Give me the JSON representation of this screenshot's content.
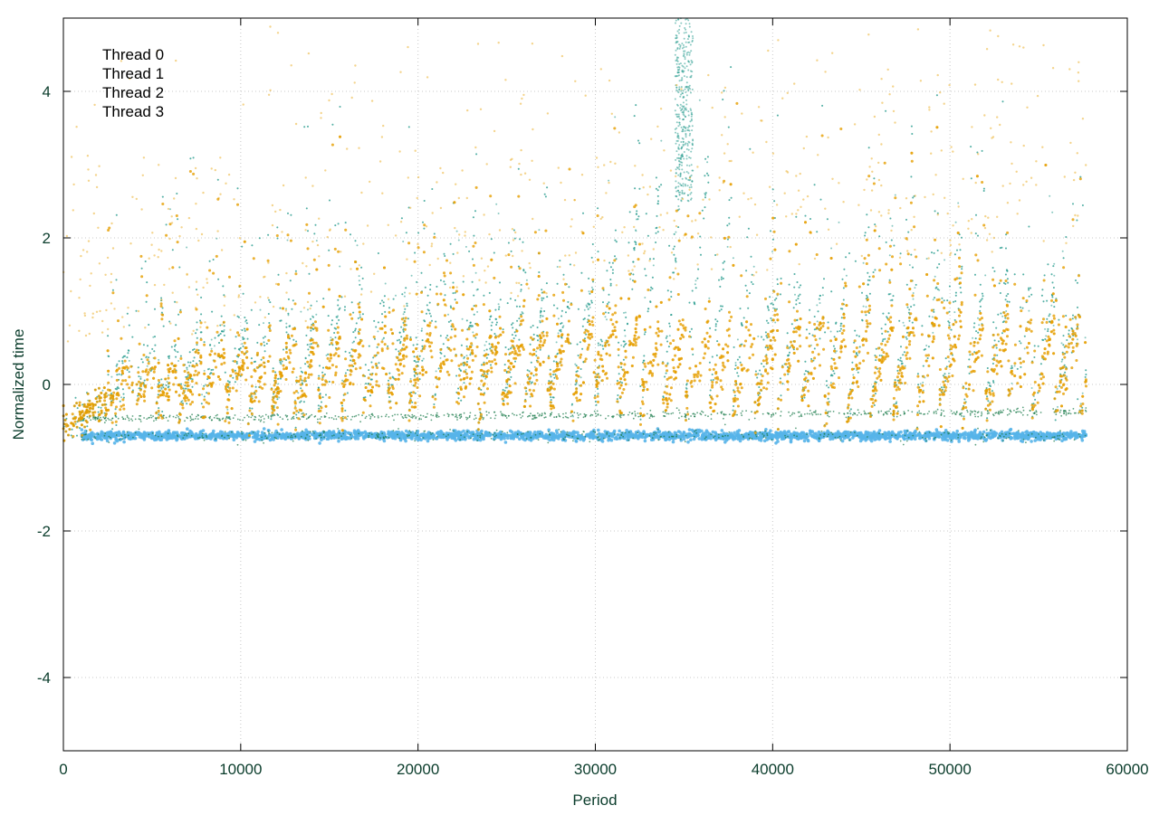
{
  "chart_data": {
    "type": "scatter",
    "title": "",
    "xlabel": "Period",
    "ylabel": "Normalized time",
    "xlim": [
      0,
      60000
    ],
    "ylim": [
      -5,
      5
    ],
    "xticks": [
      0,
      10000,
      20000,
      30000,
      40000,
      50000,
      60000
    ],
    "yticks": [
      -4,
      -2,
      0,
      2,
      4
    ],
    "grid": true,
    "legend_position": "top-left",
    "series": [
      {
        "name": "Thread 0",
        "color": "#1a7a4a",
        "description_points": [
          [
            1000,
            -0.7
          ],
          [
            10000,
            -0.7
          ],
          [
            20000,
            -0.7
          ],
          [
            30000,
            -0.7
          ],
          [
            40000,
            -0.7
          ],
          [
            50000,
            -0.7
          ],
          [
            57500,
            -0.7
          ]
        ]
      },
      {
        "name": "Thread 1",
        "color": "#56b4e9",
        "band_center": -0.7,
        "points": [
          [
            1000,
            -0.7
          ],
          [
            10000,
            -0.7
          ],
          [
            20000,
            -0.7
          ],
          [
            30000,
            -0.7
          ],
          [
            40000,
            -0.7
          ],
          [
            50000,
            -0.7
          ],
          [
            57500,
            -0.7
          ]
        ]
      },
      {
        "name": "Thread 2",
        "color": "#2a9d8f",
        "points": [
          [
            0,
            -0.6
          ],
          [
            2000,
            0.0
          ],
          [
            5000,
            0.3
          ],
          [
            10000,
            0.6
          ],
          [
            15000,
            0.7
          ],
          [
            20000,
            0.9
          ],
          [
            25000,
            1.0
          ],
          [
            30000,
            1.1
          ],
          [
            35000,
            3.5
          ],
          [
            40000,
            1.0
          ],
          [
            45000,
            1.0
          ],
          [
            50000,
            1.2
          ],
          [
            55000,
            1.1
          ],
          [
            57500,
            0.5
          ]
        ]
      },
      {
        "name": "Thread 3",
        "color": "#e69f00",
        "points": [
          [
            0,
            -0.6
          ],
          [
            2000,
            -0.2
          ],
          [
            5000,
            0.0
          ],
          [
            10000,
            0.2
          ],
          [
            15000,
            0.3
          ],
          [
            20000,
            0.4
          ],
          [
            25000,
            0.5
          ],
          [
            30000,
            0.6
          ],
          [
            35000,
            0.5
          ],
          [
            40000,
            0.5
          ],
          [
            45000,
            0.6
          ],
          [
            50000,
            0.7
          ],
          [
            55000,
            0.6
          ],
          [
            57500,
            0.3
          ]
        ]
      }
    ]
  },
  "style": {
    "axis_color": "#000000",
    "tick_label_color": "#0b3d2c",
    "grid_color": "#c8c8c8"
  }
}
